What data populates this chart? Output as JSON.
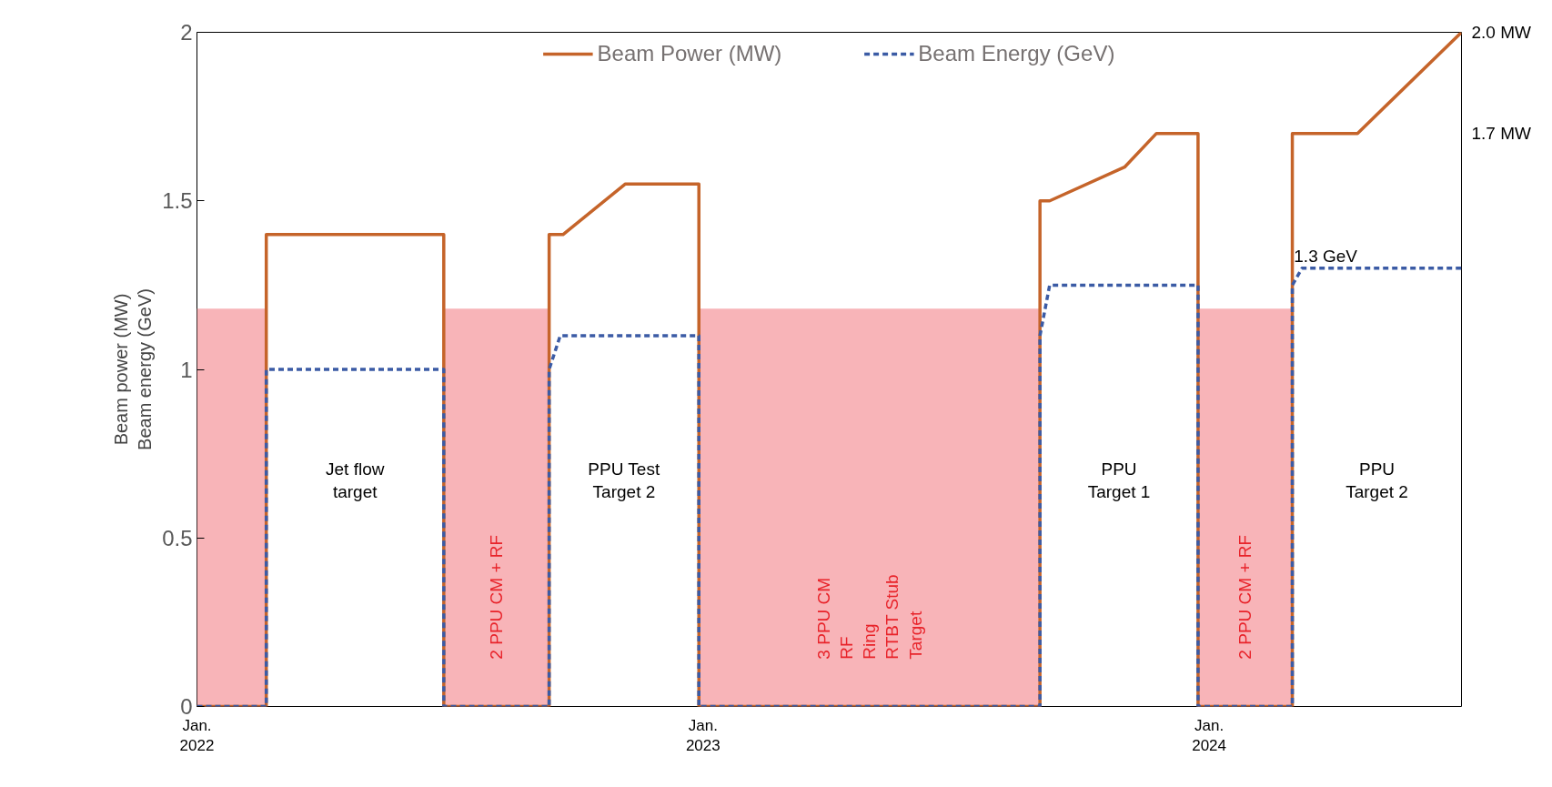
{
  "chart_data": {
    "type": "line",
    "ylabel": "Beam power (MW)\nBeam energy (GeV)",
    "xlim": [
      "2022-01-01",
      "2024-07-01"
    ],
    "xticks": [
      {
        "value": "2022-01-01",
        "label": "Jan.\n2022"
      },
      {
        "value": "2023-01-01",
        "label": "Jan.\n2023"
      },
      {
        "value": "2024-01-01",
        "label": "Jan.\n2024"
      }
    ],
    "ylim": [
      0,
      2
    ],
    "yticks": [
      0,
      0.5,
      1,
      1.5,
      2
    ],
    "y2lim": [
      0,
      2
    ],
    "y2ticks": [
      {
        "value": 1.7,
        "label": "1.7 MW"
      },
      {
        "value": 2,
        "label": "2.0 MW"
      }
    ],
    "grid": false,
    "legend": "top",
    "marker": "none",
    "series": [
      {
        "type": "area",
        "color": "#f8b4b8",
        "x": [
          "2022-01-01",
          "2022-02-20",
          "2022-02-20",
          "2022-06-28",
          "2022-06-28",
          "2022-09-12",
          "2022-09-12",
          "2022-12-29",
          "2022-12-29",
          "2023-09-01",
          "2023-09-01",
          "2023-12-24",
          "2023-12-24",
          "2024-03-01",
          "2024-03-01",
          "2024-07-01"
        ],
        "values": [
          1.18,
          1.18,
          0,
          0,
          1.18,
          1.18,
          0,
          0,
          1.18,
          1.18,
          0,
          0,
          1.18,
          1.18,
          0,
          0
        ]
      },
      {
        "name": "Beam Power (MW)",
        "color": "#c5642a",
        "line_style": "solid",
        "x": [
          "2022-01-01",
          "2022-02-20",
          "2022-02-20",
          "2022-06-28",
          "2022-06-28",
          "2022-09-12",
          "2022-09-12",
          "2022-09-22",
          "2022-11-06",
          "2022-12-29",
          "2022-12-29",
          "2023-09-01",
          "2023-09-01",
          "2023-09-08",
          "2023-11-01",
          "2023-11-24",
          "2023-12-24",
          "2023-12-24",
          "2024-03-01",
          "2024-03-01",
          "2024-04-17",
          "2024-07-01"
        ],
        "values": [
          0,
          0,
          1.4,
          1.4,
          0,
          0,
          1.4,
          1.4,
          1.55,
          1.55,
          0,
          0,
          1.5,
          1.5,
          1.6,
          1.7,
          1.7,
          0,
          0,
          1.7,
          1.7,
          2.0
        ]
      },
      {
        "name": "Beam Energy (GeV)",
        "color": "#3b5ba5",
        "line_style": "dashed",
        "x": [
          "2022-01-01",
          "2022-02-20",
          "2022-02-20",
          "2022-06-28",
          "2022-06-28",
          "2022-09-12",
          "2022-09-12",
          "2022-09-20",
          "2022-12-29",
          "2022-12-29",
          "2023-09-01",
          "2023-09-01",
          "2023-09-08",
          "2023-12-24",
          "2023-12-24",
          "2024-03-01",
          "2024-03-01",
          "2024-03-08",
          "2024-07-01"
        ],
        "values": [
          0,
          0,
          1.0,
          1.0,
          0,
          0,
          1.0,
          1.1,
          1.1,
          0,
          0,
          1.1,
          1.25,
          1.25,
          0,
          0,
          1.25,
          1.3,
          1.3
        ]
      }
    ],
    "annotations": [
      "Jet flow\ntarget",
      "2 PPU CM + RF",
      "PPU Test\nTarget 2",
      "3 PPU CM\nRF\nRing\nRTBT Stub\nTarget",
      "PPU\nTarget 1",
      "2 PPU CM + RF",
      "PPU\nTarget 2",
      {
        "text": "1.3 GeV",
        "x": "2024-03-25",
        "y": 1.3
      }
    ]
  }
}
